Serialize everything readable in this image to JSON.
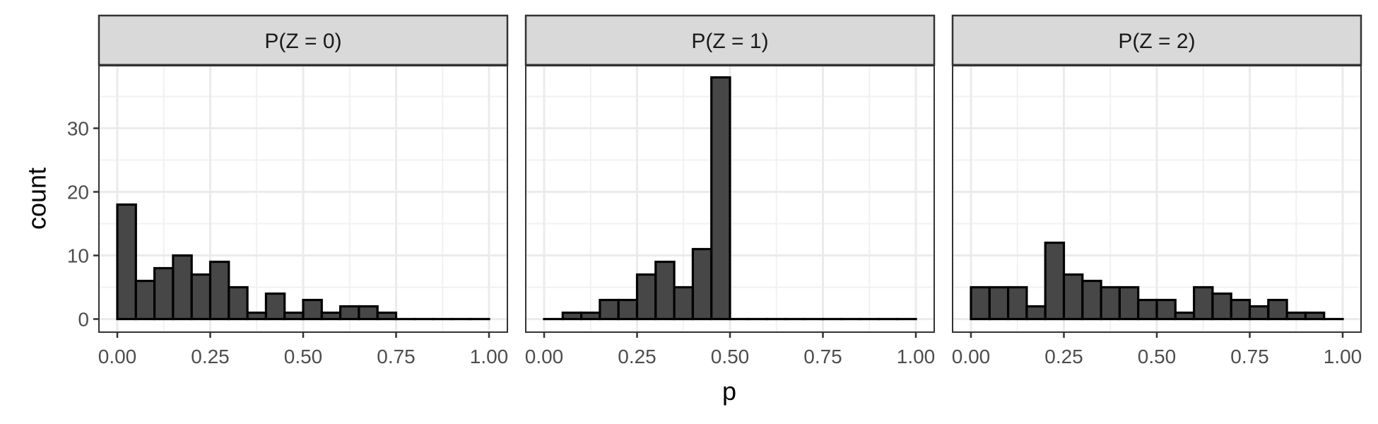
{
  "chart_data": {
    "type": "bar",
    "layout": "facet",
    "xlabel": "p",
    "ylabel": "count",
    "xlim": [
      0,
      1
    ],
    "ylim": [
      0,
      39
    ],
    "x_ticks": [
      0,
      0.25,
      0.5,
      0.75,
      1
    ],
    "x_tick_labels": [
      "0.00",
      "0.25",
      "0.50",
      "0.75",
      "1.00"
    ],
    "y_ticks": [
      0,
      10,
      20,
      30
    ],
    "y_tick_labels": [
      "0",
      "10",
      "20",
      "30"
    ],
    "bin_width": 0.05,
    "bin_starts": [
      0,
      0.05,
      0.1,
      0.15,
      0.2,
      0.25,
      0.3,
      0.35,
      0.4,
      0.45,
      0.5,
      0.55,
      0.6,
      0.65,
      0.7,
      0.75,
      0.8,
      0.85,
      0.9,
      0.95
    ],
    "grid": true,
    "legend": "none",
    "colors": {
      "bar_fill": "#474747",
      "bar_stroke": "#000000",
      "strip_fill": "#d9d9d9",
      "grid": "#ebebeb"
    },
    "panels": [
      {
        "strip": "P(Z = 0)",
        "counts": [
          18,
          6,
          8,
          10,
          7,
          9,
          5,
          1,
          4,
          1,
          3,
          1,
          2,
          2,
          1,
          0,
          0,
          0,
          0,
          0
        ]
      },
      {
        "strip": "P(Z = 1)",
        "counts": [
          0,
          1,
          1,
          3,
          3,
          7,
          9,
          5,
          11,
          38,
          0,
          0,
          0,
          0,
          0,
          0,
          0,
          0,
          0,
          0
        ]
      },
      {
        "strip": "P(Z = 2)",
        "counts": [
          5,
          5,
          5,
          2,
          12,
          7,
          6,
          5,
          5,
          3,
          3,
          1,
          5,
          4,
          3,
          2,
          3,
          1,
          1,
          0
        ]
      }
    ]
  }
}
